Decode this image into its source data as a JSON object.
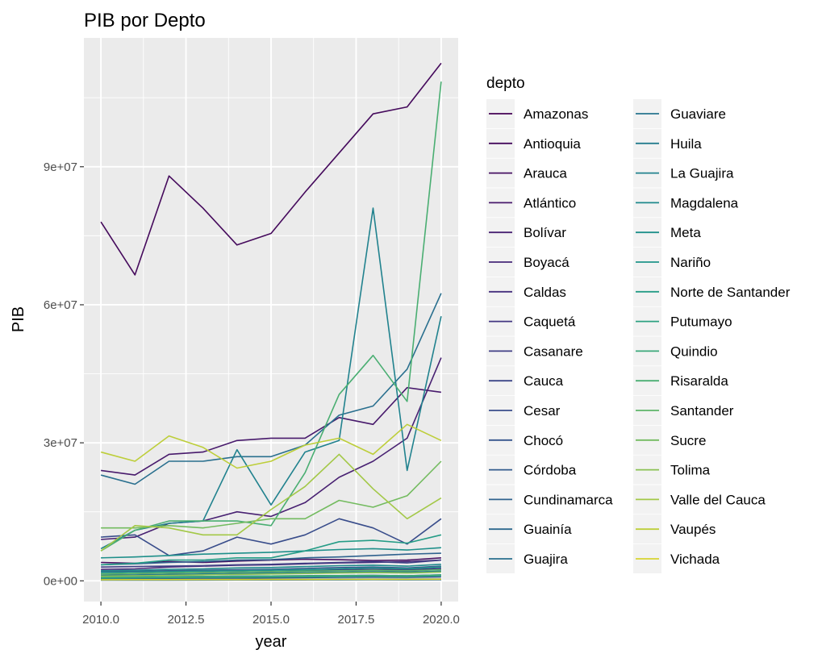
{
  "chart_data": {
    "type": "line",
    "title": "PIB por Depto",
    "xlabel": "year",
    "ylabel": "PIB",
    "xlim": [
      2009.5,
      2020.5
    ],
    "ylim": [
      -4500000,
      118000000
    ],
    "x_ticks": [
      2010,
      2012.5,
      2015,
      2017.5,
      2020
    ],
    "x_tick_labels": [
      "2010.0",
      "2012.5",
      "2015.0",
      "2017.5",
      "2020.0"
    ],
    "y_ticks": [
      0,
      30000000,
      60000000,
      90000000
    ],
    "y_tick_labels": [
      "0e+00",
      "3e+07",
      "6e+07",
      "9e+07"
    ],
    "grid": true,
    "background": "#ebebeb",
    "legend": {
      "title": "depto",
      "placement": "right",
      "columns": 2
    },
    "x": [
      2010,
      2011,
      2012,
      2013,
      2014,
      2015,
      2016,
      2017,
      2018,
      2019,
      2020
    ],
    "series": [
      {
        "name": "Amazonas",
        "color": "#440154",
        "values": [
          200000,
          200000,
          200000,
          200000,
          250000,
          250000,
          250000,
          300000,
          300000,
          300000,
          350000
        ]
      },
      {
        "name": "Antioquia",
        "color": "#450A5C",
        "values": [
          78000000,
          66500000,
          88000000,
          81000000,
          73000000,
          75500000,
          84500000,
          93000000,
          101500000,
          103000000,
          112500000
        ]
      },
      {
        "name": "Arauca",
        "color": "#471163",
        "values": [
          4000000,
          3800000,
          4200000,
          4000000,
          4300000,
          4500000,
          4700000,
          4600000,
          4400000,
          4500000,
          5000000
        ]
      },
      {
        "name": "Atlántico",
        "color": "#481A6C",
        "values": [
          24000000,
          23000000,
          27500000,
          28000000,
          30500000,
          31000000,
          31000000,
          35500000,
          34000000,
          42000000,
          41000000
        ]
      },
      {
        "name": "Bolívar",
        "color": "#482172",
        "values": [
          9000000,
          9500000,
          12500000,
          13000000,
          15000000,
          14000000,
          17000000,
          22500000,
          26000000,
          31000000,
          48500000
        ]
      },
      {
        "name": "Boyacá",
        "color": "#472878",
        "values": [
          2500000,
          2600000,
          3000000,
          3200000,
          3400000,
          3500000,
          3700000,
          3900000,
          4000000,
          4200000,
          4500000
        ]
      },
      {
        "name": "Caldas",
        "color": "#45307D",
        "values": [
          1500000,
          1600000,
          1700000,
          1800000,
          1900000,
          2000000,
          2200000,
          2400000,
          2500000,
          2400000,
          2700000
        ]
      },
      {
        "name": "Caquetá",
        "color": "#433781",
        "values": [
          800000,
          850000,
          900000,
          950000,
          1000000,
          1050000,
          1100000,
          1150000,
          1200000,
          1100000,
          1300000
        ]
      },
      {
        "name": "Casanare",
        "color": "#403F85",
        "values": [
          3000000,
          3100000,
          3200000,
          3300000,
          3500000,
          3600000,
          3800000,
          4000000,
          4200000,
          3900000,
          4500000
        ]
      },
      {
        "name": "Cauca",
        "color": "#3C4688",
        "values": [
          1500000,
          1600000,
          1700000,
          1800000,
          1900000,
          2000000,
          2100000,
          2200000,
          2300000,
          2100000,
          2500000
        ]
      },
      {
        "name": "Cesar",
        "color": "#394D8B",
        "values": [
          9500000,
          10000000,
          5500000,
          6500000,
          9500000,
          8000000,
          10000000,
          13500000,
          11500000,
          8000000,
          13500000
        ]
      },
      {
        "name": "Chocó",
        "color": "#35548C",
        "values": [
          500000,
          520000,
          550000,
          600000,
          620000,
          650000,
          700000,
          750000,
          800000,
          750000,
          850000
        ]
      },
      {
        "name": "Córdoba",
        "color": "#325B8D",
        "values": [
          2000000,
          2100000,
          2200000,
          2300000,
          2400000,
          2500000,
          2700000,
          2900000,
          3000000,
          2800000,
          3200000
        ]
      },
      {
        "name": "Cundinamarca",
        "color": "#2F628E",
        "values": [
          3500000,
          3700000,
          4000000,
          4200000,
          4500000,
          4600000,
          5000000,
          5200000,
          5500000,
          5800000,
          6000000
        ]
      },
      {
        "name": "Guainía",
        "color": "#2C688E",
        "values": [
          150000,
          160000,
          170000,
          180000,
          190000,
          200000,
          210000,
          220000,
          230000,
          220000,
          250000
        ]
      },
      {
        "name": "Guajira",
        "color": "#296F8E",
        "values": [
          23000000,
          21000000,
          26000000,
          26000000,
          27000000,
          27000000,
          29500000,
          36000000,
          38000000,
          46000000,
          62500000
        ]
      },
      {
        "name": "Guaviare",
        "color": "#27758E",
        "values": [
          300000,
          310000,
          320000,
          330000,
          340000,
          350000,
          360000,
          370000,
          380000,
          370000,
          400000
        ]
      },
      {
        "name": "Huila",
        "color": "#247C8E",
        "values": [
          1200000,
          1300000,
          1400000,
          1500000,
          1600000,
          1700000,
          1800000,
          1900000,
          2000000,
          1900000,
          2100000
        ]
      },
      {
        "name": "La Guajira",
        "color": "#21828E",
        "values": [
          7000000,
          11000000,
          12500000,
          13000000,
          28500000,
          16500000,
          28000000,
          30500000,
          81000000,
          24000000,
          57500000
        ]
      },
      {
        "name": "Magdalena",
        "color": "#1F898C",
        "values": [
          2200000,
          2300000,
          2500000,
          2600000,
          2800000,
          2900000,
          3100000,
          3300000,
          3400000,
          3200000,
          3600000
        ]
      },
      {
        "name": "Meta",
        "color": "#1E8F8A",
        "values": [
          5000000,
          5200000,
          5500000,
          5800000,
          6000000,
          6200000,
          6500000,
          6800000,
          7000000,
          6700000,
          7200000
        ]
      },
      {
        "name": "Nariño",
        "color": "#20958A",
        "values": [
          1800000,
          1900000,
          2000000,
          2100000,
          2200000,
          2300000,
          2400000,
          2600000,
          2800000,
          2600000,
          3000000
        ]
      },
      {
        "name": "Norte de Santander",
        "color": "#259C86",
        "values": [
          3500000,
          3800000,
          4500000,
          4500000,
          5000000,
          5000000,
          6500000,
          8500000,
          8800000,
          8200000,
          10000000
        ]
      },
      {
        "name": "Putumayo",
        "color": "#2DA181",
        "values": [
          600000,
          650000,
          700000,
          750000,
          800000,
          850000,
          900000,
          950000,
          1000000,
          950000,
          1100000
        ]
      },
      {
        "name": "Quindio",
        "color": "#3BA87A",
        "values": [
          800000,
          850000,
          900000,
          950000,
          1000000,
          1050000,
          1100000,
          1150000,
          1200000,
          1100000,
          1300000
        ]
      },
      {
        "name": "Risaralda",
        "color": "#4AAE72",
        "values": [
          6500000,
          11000000,
          13000000,
          13000000,
          13000000,
          12000000,
          23500000,
          40500000,
          49000000,
          39000000,
          108500000
        ]
      },
      {
        "name": "Santander",
        "color": "#5DB569",
        "values": [
          1500000,
          1600000,
          1700000,
          1800000,
          1900000,
          2000000,
          2100000,
          2200000,
          2300000,
          2200000,
          2400000
        ]
      },
      {
        "name": "Sucre",
        "color": "#73BB5F",
        "values": [
          11500000,
          11500000,
          12000000,
          11500000,
          12500000,
          13500000,
          13500000,
          17500000,
          16000000,
          18500000,
          26000000
        ]
      },
      {
        "name": "Tolima",
        "color": "#8AC153",
        "values": [
          1000000,
          1100000,
          1200000,
          1300000,
          1400000,
          1500000,
          1600000,
          1700000,
          1800000,
          1700000,
          1900000
        ]
      },
      {
        "name": "Valle del Cauca",
        "color": "#A3C847",
        "values": [
          6500000,
          12000000,
          11500000,
          10000000,
          10000000,
          15500000,
          20500000,
          27500000,
          20000000,
          13500000,
          18000000
        ]
      },
      {
        "name": "Vaupés",
        "color": "#BDCE39",
        "values": [
          28000000,
          26000000,
          31500000,
          29000000,
          24500000,
          26000000,
          29500000,
          31000000,
          27500000,
          34000000,
          30500000
        ]
      },
      {
        "name": "Vichada",
        "color": "#D7D32F",
        "values": [
          250000,
          260000,
          270000,
          280000,
          290000,
          300000,
          310000,
          320000,
          330000,
          320000,
          350000
        ]
      }
    ]
  }
}
